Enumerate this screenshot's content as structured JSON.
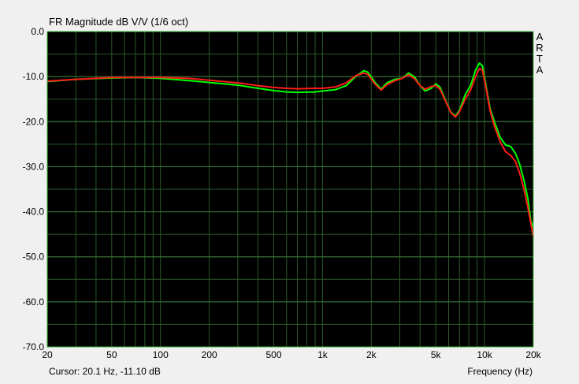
{
  "chart_data": {
    "type": "line",
    "title": "FR Magnitude dB V/V (1/6 oct)",
    "xlabel": "Frequency (Hz)",
    "ylabel": "",
    "xscale": "log",
    "xlim": [
      20,
      20000
    ],
    "ylim": [
      -70,
      0
    ],
    "grid": true,
    "x_tick_values": [
      20,
      50,
      100,
      200,
      500,
      1000,
      2000,
      5000,
      10000,
      20000
    ],
    "x_tick_labels": [
      "20",
      "50",
      "100",
      "200",
      "500",
      "1k",
      "2k",
      "5k",
      "10k",
      "20k"
    ],
    "y_tick_values": [
      0,
      -10,
      -20,
      -30,
      -40,
      -50,
      -60,
      -70
    ],
    "y_tick_labels": [
      "0.0",
      "-10.0",
      "-20.0",
      "-30.0",
      "-40.0",
      "-50.0",
      "-60.0",
      "-70.0"
    ],
    "brand": "ARTA",
    "cursor_text": "Cursor: 20.1 Hz, -11.10 dB",
    "colors": {
      "background": "#000000",
      "grid": "#2a5a2a",
      "frame": "#3fb93f",
      "page": "#f0f0f0"
    },
    "series": [
      {
        "color": "#00ff00",
        "points": [
          [
            20,
            -11.1
          ],
          [
            30,
            -10.6
          ],
          [
            50,
            -10.3
          ],
          [
            70,
            -10.2
          ],
          [
            100,
            -10.4
          ],
          [
            150,
            -10.9
          ],
          [
            200,
            -11.3
          ],
          [
            300,
            -11.9
          ],
          [
            400,
            -12.6
          ],
          [
            500,
            -13.1
          ],
          [
            600,
            -13.4
          ],
          [
            700,
            -13.5
          ],
          [
            900,
            -13.4
          ],
          [
            1000,
            -13.2
          ],
          [
            1200,
            -12.9
          ],
          [
            1400,
            -12.0
          ],
          [
            1600,
            -10.0
          ],
          [
            1800,
            -8.7
          ],
          [
            1900,
            -9.0
          ],
          [
            2100,
            -11.2
          ],
          [
            2300,
            -12.8
          ],
          [
            2500,
            -11.4
          ],
          [
            2800,
            -10.6
          ],
          [
            3100,
            -10.4
          ],
          [
            3400,
            -9.2
          ],
          [
            3700,
            -10.1
          ],
          [
            4000,
            -12.0
          ],
          [
            4300,
            -13.2
          ],
          [
            4700,
            -12.6
          ],
          [
            5000,
            -11.6
          ],
          [
            5300,
            -12.3
          ],
          [
            5700,
            -15.0
          ],
          [
            6200,
            -17.9
          ],
          [
            6600,
            -18.8
          ],
          [
            7000,
            -17.5
          ],
          [
            7600,
            -14.0
          ],
          [
            8200,
            -12.0
          ],
          [
            8800,
            -8.6
          ],
          [
            9300,
            -7.0
          ],
          [
            9700,
            -7.6
          ],
          [
            10200,
            -12.0
          ],
          [
            10800,
            -17.0
          ],
          [
            11500,
            -20.0
          ],
          [
            12500,
            -23.5
          ],
          [
            13500,
            -25.2
          ],
          [
            14500,
            -25.5
          ],
          [
            15500,
            -27.0
          ],
          [
            16500,
            -29.5
          ],
          [
            17500,
            -33.0
          ],
          [
            18500,
            -37.0
          ],
          [
            19300,
            -42.0
          ],
          [
            20000,
            -43.5
          ]
        ]
      },
      {
        "color": "#ff1a1a",
        "points": [
          [
            20,
            -11.0
          ],
          [
            30,
            -10.6
          ],
          [
            50,
            -10.2
          ],
          [
            70,
            -10.2
          ],
          [
            100,
            -10.2
          ],
          [
            150,
            -10.4
          ],
          [
            200,
            -10.8
          ],
          [
            300,
            -11.4
          ],
          [
            400,
            -12.0
          ],
          [
            500,
            -12.4
          ],
          [
            600,
            -12.6
          ],
          [
            700,
            -12.7
          ],
          [
            900,
            -12.6
          ],
          [
            1000,
            -12.6
          ],
          [
            1200,
            -12.3
          ],
          [
            1400,
            -11.4
          ],
          [
            1600,
            -9.8
          ],
          [
            1800,
            -9.2
          ],
          [
            1900,
            -9.5
          ],
          [
            2100,
            -11.6
          ],
          [
            2300,
            -13.0
          ],
          [
            2500,
            -11.8
          ],
          [
            2800,
            -10.9
          ],
          [
            3100,
            -10.4
          ],
          [
            3400,
            -9.6
          ],
          [
            3700,
            -10.5
          ],
          [
            4000,
            -12.0
          ],
          [
            4300,
            -12.8
          ],
          [
            4700,
            -12.2
          ],
          [
            5000,
            -12.0
          ],
          [
            5300,
            -12.8
          ],
          [
            5700,
            -15.2
          ],
          [
            6200,
            -18.0
          ],
          [
            6600,
            -19.0
          ],
          [
            7000,
            -17.8
          ],
          [
            7600,
            -15.0
          ],
          [
            8200,
            -13.0
          ],
          [
            8800,
            -10.0
          ],
          [
            9300,
            -8.2
          ],
          [
            9700,
            -8.6
          ],
          [
            10200,
            -12.5
          ],
          [
            10800,
            -17.5
          ],
          [
            11500,
            -21.0
          ],
          [
            12500,
            -24.5
          ],
          [
            13500,
            -26.7
          ],
          [
            14500,
            -27.5
          ],
          [
            15500,
            -28.8
          ],
          [
            16500,
            -31.5
          ],
          [
            17500,
            -35.0
          ],
          [
            18500,
            -39.0
          ],
          [
            19300,
            -42.5
          ],
          [
            20000,
            -45.5
          ]
        ]
      }
    ]
  }
}
